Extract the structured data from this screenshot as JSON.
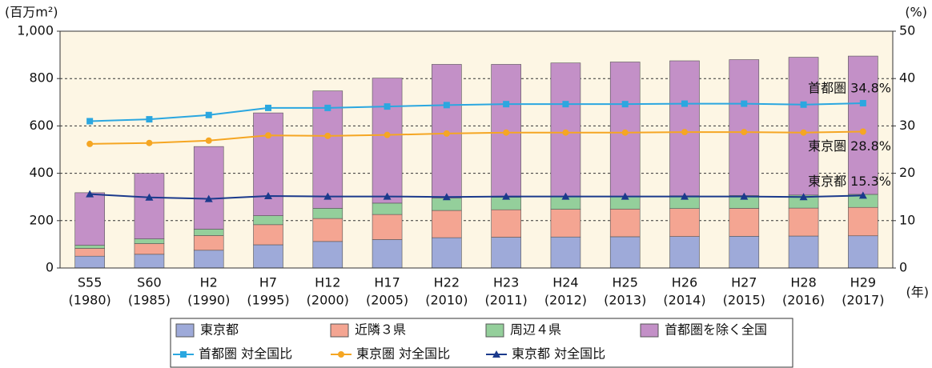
{
  "chart_data": {
    "type": "bar",
    "stacked": true,
    "y_unit_label": "(百万m²)",
    "y2_unit_label": "(%)",
    "x_unit_label": "(年)",
    "categories": [
      [
        "S55",
        "(1980)"
      ],
      [
        "S60",
        "(1985)"
      ],
      [
        "H2",
        "(1990)"
      ],
      [
        "H7",
        "(1995)"
      ],
      [
        "H12",
        "(2000)"
      ],
      [
        "H17",
        "(2005)"
      ],
      [
        "H22",
        "(2010)"
      ],
      [
        "H23",
        "(2011)"
      ],
      [
        "H24",
        "(2012)"
      ],
      [
        "H25",
        "(2013)"
      ],
      [
        "H26",
        "(2014)"
      ],
      [
        "H27",
        "(2015)"
      ],
      [
        "H28",
        "(2016)"
      ],
      [
        "H29",
        "(2017)"
      ]
    ],
    "series": [
      {
        "name": "東京都",
        "type": "bar",
        "color": "#9eaad9",
        "values": [
          50,
          58,
          75,
          98,
          112,
          120,
          128,
          130,
          131,
          132,
          133,
          134,
          135,
          136
        ]
      },
      {
        "name": "近隣３県",
        "type": "bar",
        "color": "#f4a592",
        "values": [
          33,
          45,
          62,
          85,
          97,
          106,
          115,
          116,
          117,
          117,
          118,
          118,
          118,
          120
        ]
      },
      {
        "name": "周辺４県",
        "type": "bar",
        "color": "#94cf9b",
        "values": [
          13,
          20,
          27,
          38,
          43,
          48,
          52,
          53,
          53,
          53,
          54,
          54,
          55,
          55
        ]
      },
      {
        "name": "首都圏を除く全国",
        "type": "bar",
        "color": "#c390c7",
        "values": [
          222,
          277,
          349,
          434,
          496,
          528,
          565,
          561,
          565,
          568,
          570,
          574,
          582,
          584
        ]
      },
      {
        "name": "首都圏 対全国比",
        "type": "line",
        "axis": "y2",
        "marker": "square",
        "color": "#2ba7e0",
        "values": [
          31.0,
          31.4,
          32.3,
          33.8,
          33.8,
          34.1,
          34.4,
          34.6,
          34.6,
          34.6,
          34.7,
          34.7,
          34.5,
          34.8
        ]
      },
      {
        "name": "東京圏 対全国比",
        "type": "line",
        "axis": "y2",
        "marker": "circle",
        "color": "#f5a623",
        "values": [
          26.2,
          26.4,
          26.9,
          28.0,
          27.9,
          28.1,
          28.4,
          28.6,
          28.6,
          28.6,
          28.7,
          28.7,
          28.6,
          28.8
        ]
      },
      {
        "name": "東京都 対全国比",
        "type": "line",
        "axis": "y2",
        "marker": "triangle",
        "color": "#1b3a8c",
        "values": [
          15.6,
          14.9,
          14.6,
          15.2,
          15.1,
          15.1,
          15.0,
          15.1,
          15.1,
          15.1,
          15.1,
          15.1,
          15.0,
          15.3
        ]
      }
    ],
    "annotations": [
      "首都圏 34.8%",
      "東京圏 28.8%",
      "東京都 15.3%"
    ],
    "ylim": [
      0,
      1000
    ],
    "yticks": [
      0,
      200,
      400,
      600,
      800,
      {
        "value": 1000,
        "label": "1,000"
      }
    ],
    "y2lim": [
      0,
      50
    ],
    "y2ticks": [
      0,
      10,
      20,
      30,
      40,
      50
    ],
    "grid": true,
    "plot_background": "#fdf6e4"
  }
}
